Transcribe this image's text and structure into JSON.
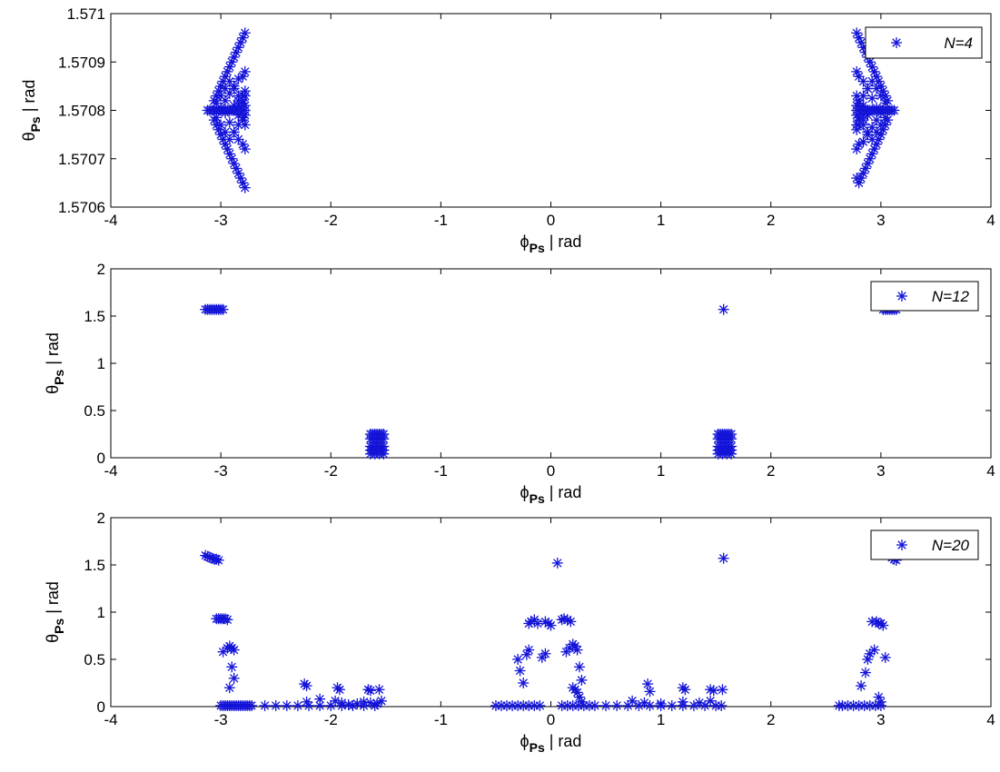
{
  "chart_data": [
    {
      "type": "scatter",
      "xlabel": "ϕ_Ps | rad",
      "ylabel": "θ_Ps | rad",
      "xlim": [
        -4,
        4
      ],
      "ylim": [
        1.5706,
        1.571
      ],
      "xticks": [
        "-4",
        "-3",
        "-2",
        "-1",
        "0",
        "1",
        "2",
        "3",
        "4"
      ],
      "yticks": [
        "1.5706",
        "1.5707",
        "1.5708",
        "1.5709",
        "1.571"
      ],
      "marker": "asterisk",
      "color": "#1414d8",
      "legend": {
        "label": "N=4",
        "position": "top-right"
      },
      "grid": false,
      "series": [
        {
          "name": "N=4",
          "x": [
            -3.12,
            -3.1,
            -3.08,
            -3.06,
            -3.04,
            -3.02,
            -3.0,
            -2.98,
            -2.96,
            -2.94,
            -2.92,
            -2.9,
            -2.88,
            -2.86,
            -2.84,
            -2.82,
            -2.8,
            -2.78,
            -3.06,
            -3.04,
            -3.02,
            -3.0,
            -2.98,
            -2.96,
            -2.94,
            -2.92,
            -2.9,
            -2.88,
            -2.86,
            -2.84,
            -2.82,
            -2.8,
            -2.78,
            -3.06,
            -3.04,
            -3.02,
            -3.0,
            -2.98,
            -2.96,
            -2.94,
            -2.92,
            -2.9,
            -2.88,
            -2.86,
            -2.84,
            -2.82,
            -2.8,
            -2.78,
            -3.04,
            -3.0,
            -2.96,
            -2.92,
            -2.88,
            -2.84,
            -2.8,
            -2.78,
            -3.04,
            -3.0,
            -2.96,
            -2.92,
            -2.88,
            -2.84,
            -2.8,
            -2.78,
            -3.0,
            -2.96,
            -2.92,
            -2.88,
            -2.84,
            -2.8,
            -2.78,
            -2.96,
            -2.92,
            -2.88,
            -2.84,
            -2.8,
            -2.78,
            -2.92,
            -2.88,
            -2.84,
            -2.8,
            -2.78,
            -2.84,
            -2.8,
            -2.78,
            -2.84,
            -2.8,
            -2.78,
            3.12,
            3.1,
            3.08,
            3.06,
            3.04,
            3.02,
            3.0,
            2.98,
            2.96,
            2.94,
            2.92,
            2.9,
            2.88,
            2.86,
            2.84,
            2.82,
            2.8,
            2.78,
            3.06,
            3.04,
            3.02,
            3.0,
            2.98,
            2.96,
            2.94,
            2.92,
            2.9,
            2.88,
            2.86,
            2.84,
            2.82,
            2.8,
            2.78,
            3.06,
            3.04,
            3.02,
            3.0,
            2.98,
            2.96,
            2.94,
            2.92,
            2.9,
            2.88,
            2.86,
            2.84,
            2.82,
            2.8,
            2.78,
            3.04,
            3.0,
            2.96,
            2.92,
            2.88,
            2.84,
            2.8,
            2.78,
            3.04,
            3.0,
            2.96,
            2.92,
            2.88,
            2.84,
            2.8,
            2.78,
            3.0,
            2.96,
            2.92,
            2.88,
            2.84,
            2.8,
            2.78,
            2.96,
            2.92,
            2.88,
            2.84,
            2.8,
            2.78,
            2.92,
            2.88,
            2.84,
            2.8,
            2.78,
            2.84,
            2.8,
            2.78,
            2.84,
            2.8,
            2.78
          ],
          "y": [
            1.5708,
            1.5708,
            1.5708,
            1.5708,
            1.5708,
            1.5708,
            1.5708,
            1.5708,
            1.5708,
            1.5708,
            1.5708,
            1.5708,
            1.5708,
            1.5708,
            1.5708,
            1.5708,
            1.5708,
            1.5708,
            1.57082,
            1.57083,
            1.57084,
            1.57085,
            1.57086,
            1.57087,
            1.57088,
            1.57089,
            1.5709,
            1.57091,
            1.57092,
            1.57093,
            1.57094,
            1.57095,
            1.57096,
            1.57078,
            1.57077,
            1.57076,
            1.57075,
            1.57074,
            1.57073,
            1.57072,
            1.57071,
            1.5707,
            1.57069,
            1.57068,
            1.57067,
            1.57066,
            1.57065,
            1.57064,
            1.570815,
            1.57083,
            1.570845,
            1.57086,
            1.570845,
            1.57083,
            1.570815,
            1.57081,
            1.570785,
            1.57077,
            1.570755,
            1.57074,
            1.570755,
            1.57077,
            1.570785,
            1.57079,
            1.570805,
            1.57082,
            1.570835,
            1.57085,
            1.570865,
            1.57087,
            1.57088,
            1.570795,
            1.570775,
            1.570755,
            1.57074,
            1.57073,
            1.57072,
            1.5708,
            1.57081,
            1.57082,
            1.57083,
            1.57084,
            1.57079,
            1.57078,
            1.57077,
            1.57081,
            1.57082,
            1.57083,
            1.5708,
            1.5708,
            1.5708,
            1.5708,
            1.5708,
            1.5708,
            1.5708,
            1.5708,
            1.5708,
            1.5708,
            1.5708,
            1.5708,
            1.5708,
            1.5708,
            1.5708,
            1.5708,
            1.5708,
            1.5708,
            1.57078,
            1.57077,
            1.57076,
            1.57075,
            1.57074,
            1.57073,
            1.57072,
            1.57071,
            1.5707,
            1.57069,
            1.57068,
            1.57067,
            1.57066,
            1.57065,
            1.57066,
            1.57082,
            1.57083,
            1.57084,
            1.57085,
            1.57086,
            1.57087,
            1.57088,
            1.57089,
            1.5709,
            1.57091,
            1.57092,
            1.57093,
            1.57094,
            1.57095,
            1.57096,
            1.570785,
            1.57077,
            1.570755,
            1.57074,
            1.570755,
            1.57077,
            1.570785,
            1.57079,
            1.570815,
            1.57083,
            1.570845,
            1.57086,
            1.570845,
            1.57083,
            1.570815,
            1.57081,
            1.570795,
            1.57078,
            1.570765,
            1.57075,
            1.570735,
            1.57073,
            1.57072,
            1.570805,
            1.570825,
            1.570845,
            1.57086,
            1.57087,
            1.57088,
            1.5708,
            1.57079,
            1.57078,
            1.57077,
            1.57076,
            1.57081,
            1.57082,
            1.57083,
            1.57079,
            1.57078,
            1.57077
          ]
        }
      ]
    },
    {
      "type": "scatter",
      "xlabel": "ϕ_Ps | rad",
      "ylabel": "θ_Ps | rad",
      "xlim": [
        -4,
        4
      ],
      "ylim": [
        0,
        2
      ],
      "xticks": [
        "-4",
        "-3",
        "-2",
        "-1",
        "0",
        "1",
        "2",
        "3",
        "4"
      ],
      "yticks": [
        "0",
        "0.5",
        "1",
        "1.5",
        "2"
      ],
      "marker": "asterisk",
      "color": "#1414d8",
      "legend": {
        "label": "N=12",
        "position": "top-right"
      },
      "grid": false,
      "series": [
        {
          "name": "N=12",
          "x": [
            -3.14,
            -3.12,
            -3.1,
            -3.08,
            -3.06,
            -3.04,
            -3.02,
            -3.0,
            -2.98,
            -1.64,
            -1.62,
            -1.6,
            -1.58,
            -1.56,
            -1.54,
            -1.52,
            -1.64,
            -1.62,
            -1.6,
            -1.58,
            -1.56,
            -1.54,
            -1.52,
            -1.64,
            -1.62,
            -1.6,
            -1.58,
            -1.56,
            -1.54,
            -1.52,
            -1.64,
            -1.62,
            -1.6,
            -1.58,
            -1.56,
            -1.54,
            -1.52,
            -1.64,
            -1.6,
            -1.56,
            -1.52,
            1.52,
            1.54,
            1.56,
            1.58,
            1.6,
            1.62,
            1.64,
            1.52,
            1.54,
            1.56,
            1.58,
            1.6,
            1.62,
            1.64,
            1.52,
            1.54,
            1.56,
            1.58,
            1.6,
            1.62,
            1.64,
            1.52,
            1.54,
            1.56,
            1.58,
            1.6,
            1.62,
            1.64,
            1.52,
            1.56,
            1.6,
            1.64,
            1.57,
            3.02,
            3.04,
            3.06,
            3.08,
            3.1,
            3.12,
            3.14
          ],
          "y": [
            1.57,
            1.57,
            1.57,
            1.57,
            1.57,
            1.57,
            1.57,
            1.57,
            1.57,
            0.25,
            0.25,
            0.25,
            0.25,
            0.25,
            0.25,
            0.25,
            0.2,
            0.2,
            0.2,
            0.2,
            0.2,
            0.2,
            0.2,
            0.12,
            0.12,
            0.12,
            0.12,
            0.12,
            0.12,
            0.12,
            0.08,
            0.08,
            0.08,
            0.08,
            0.08,
            0.08,
            0.08,
            0.04,
            0.04,
            0.04,
            0.04,
            0.25,
            0.25,
            0.25,
            0.25,
            0.25,
            0.25,
            0.25,
            0.2,
            0.2,
            0.2,
            0.2,
            0.2,
            0.2,
            0.2,
            0.12,
            0.12,
            0.12,
            0.12,
            0.12,
            0.12,
            0.12,
            0.08,
            0.08,
            0.08,
            0.08,
            0.08,
            0.08,
            0.08,
            0.04,
            0.04,
            0.04,
            0.04,
            1.57,
            1.57,
            1.57,
            1.57,
            1.57,
            1.57,
            1.57,
            1.57
          ]
        }
      ]
    },
    {
      "type": "scatter",
      "xlabel": "ϕ_Ps | rad",
      "ylabel": "θ_Ps | rad",
      "xlim": [
        -4,
        4
      ],
      "ylim": [
        0,
        2
      ],
      "xticks": [
        "-4",
        "-3",
        "-2",
        "-1",
        "0",
        "1",
        "2",
        "3",
        "4"
      ],
      "yticks": [
        "0",
        "0.5",
        "1",
        "1.5",
        "2"
      ],
      "marker": "asterisk",
      "color": "#1414d8",
      "legend": {
        "label": "N=20",
        "position": "top-right"
      },
      "grid": false,
      "series": [
        {
          "name": "N=20",
          "x": [
            -3.14,
            -3.12,
            -3.1,
            -3.08,
            -3.06,
            -3.04,
            -3.02,
            -3.04,
            -3.02,
            -3.0,
            -2.98,
            -2.96,
            -2.94,
            -2.98,
            -2.94,
            -2.92,
            -2.9,
            -2.88,
            -2.9,
            -2.88,
            -2.92,
            -3.0,
            -2.98,
            -2.96,
            -2.94,
            -2.92,
            -2.9,
            -2.88,
            -2.86,
            -2.84,
            -2.82,
            -2.8,
            -2.78,
            -2.76,
            -2.74,
            -2.72,
            -2.6,
            -2.5,
            -2.4,
            -2.3,
            -2.2,
            -2.1,
            -2.0,
            -1.9,
            -1.8,
            -1.7,
            -1.6,
            -2.24,
            -2.22,
            -1.94,
            -1.92,
            -1.66,
            -1.64,
            -1.56,
            -2.22,
            -2.1,
            -1.96,
            -1.9,
            -1.84,
            -1.76,
            -1.7,
            -1.64,
            -1.58,
            -1.54,
            -0.5,
            -0.45,
            -0.4,
            -0.35,
            -0.3,
            -0.25,
            -0.2,
            -0.15,
            -0.1,
            -0.3,
            -0.28,
            -0.25,
            -0.22,
            -0.2,
            -0.2,
            -0.18,
            -0.15,
            -0.12,
            -0.08,
            -0.05,
            -0.05,
            -0.02,
            0.0,
            0.06,
            0.1,
            0.12,
            0.15,
            0.18,
            0.14,
            0.17,
            0.2,
            0.22,
            0.24,
            0.26,
            0.28,
            0.2,
            0.22,
            0.24,
            0.26,
            0.28,
            0.1,
            0.15,
            0.2,
            0.25,
            0.3,
            0.35,
            0.4,
            0.5,
            0.6,
            0.7,
            0.8,
            0.9,
            1.0,
            1.1,
            1.2,
            1.3,
            1.4,
            1.5,
            1.55,
            0.74,
            0.88,
            0.9,
            1.2,
            1.22,
            1.45,
            1.48,
            1.56,
            0.85,
            1.0,
            1.2,
            1.35,
            1.45,
            1.57,
            2.62,
            2.65,
            2.7,
            2.75,
            2.8,
            2.85,
            2.9,
            2.95,
            3.0,
            2.82,
            2.86,
            2.88,
            2.9,
            2.94,
            2.92,
            2.96,
            2.98,
            3.0,
            3.02,
            3.04,
            2.98,
            3.0,
            3.08,
            3.1,
            3.12,
            3.14
          ],
          "y": [
            1.6,
            1.59,
            1.58,
            1.57,
            1.56,
            1.56,
            1.55,
            0.93,
            0.93,
            0.93,
            0.93,
            0.93,
            0.92,
            0.58,
            0.62,
            0.64,
            0.62,
            0.6,
            0.42,
            0.3,
            0.2,
            0.01,
            0.01,
            0.01,
            0.01,
            0.01,
            0.01,
            0.01,
            0.01,
            0.01,
            0.01,
            0.01,
            0.01,
            0.01,
            0.01,
            0.01,
            0.01,
            0.01,
            0.01,
            0.01,
            0.01,
            0.01,
            0.01,
            0.01,
            0.01,
            0.01,
            0.01,
            0.24,
            0.22,
            0.2,
            0.18,
            0.18,
            0.17,
            0.18,
            0.05,
            0.08,
            0.06,
            0.04,
            0.02,
            0.03,
            0.05,
            0.04,
            0.03,
            0.06,
            0.01,
            0.01,
            0.01,
            0.01,
            0.01,
            0.01,
            0.01,
            0.01,
            0.01,
            0.5,
            0.38,
            0.25,
            0.55,
            0.6,
            0.88,
            0.9,
            0.92,
            0.88,
            0.52,
            0.56,
            0.9,
            0.88,
            0.86,
            1.52,
            0.92,
            0.93,
            0.92,
            0.9,
            0.58,
            0.62,
            0.66,
            0.64,
            0.6,
            0.42,
            0.28,
            0.2,
            0.18,
            0.15,
            0.1,
            0.05,
            0.01,
            0.01,
            0.01,
            0.01,
            0.01,
            0.01,
            0.01,
            0.01,
            0.01,
            0.01,
            0.01,
            0.01,
            0.01,
            0.01,
            0.01,
            0.01,
            0.01,
            0.01,
            0.01,
            0.06,
            0.24,
            0.16,
            0.2,
            0.18,
            0.18,
            0.17,
            0.18,
            0.04,
            0.03,
            0.05,
            0.04,
            0.06,
            1.57,
            0.01,
            0.01,
            0.01,
            0.01,
            0.01,
            0.01,
            0.01,
            0.01,
            0.01,
            0.22,
            0.36,
            0.5,
            0.56,
            0.6,
            0.9,
            0.9,
            0.88,
            0.88,
            0.86,
            0.52,
            0.1,
            0.05,
            1.6,
            1.58,
            1.56,
            1.55
          ]
        }
      ]
    }
  ]
}
